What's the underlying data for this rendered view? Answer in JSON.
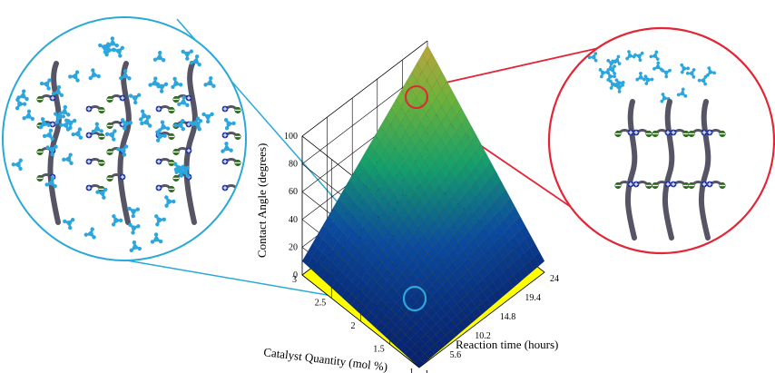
{
  "chart_data": {
    "type": "surface",
    "zlabel": "Contact Angle (degrees)",
    "xlabel": "Catalyst Quantity (mol %)",
    "ylabel": "Reaction time (hours)",
    "z_ticks": [
      "0",
      "20",
      "40",
      "60",
      "80",
      "100"
    ],
    "x_ticks": [
      "1",
      "1.5",
      "2",
      "2.5",
      "3"
    ],
    "y_ticks": [
      "1",
      "5.6",
      "10.2",
      "14.8",
      "19.4",
      "24"
    ],
    "x_range": [
      1,
      3
    ],
    "y_range": [
      1,
      24
    ],
    "z_range": [
      0,
      100
    ],
    "grid": true,
    "surface_corners": [
      {
        "x": 1,
        "y": 1,
        "z": 0
      },
      {
        "x": 3,
        "y": 1,
        "z": 10
      },
      {
        "x": 1,
        "y": 24,
        "z": 8
      },
      {
        "x": 3,
        "y": 24,
        "z": 97
      }
    ],
    "colors": {
      "floor": "#ffff00",
      "contour": "#3fc9d6",
      "highlight_low": "#2aa8d8",
      "highlight_high": "#e32636",
      "surface_low": "#0a2f8a",
      "surface_mid": "#1aa050",
      "surface_high": "#c9a53a"
    }
  },
  "insets": {
    "left": {
      "description_icon": "hydrophilic-polymer-brush-icon",
      "border": "#2aa8d8"
    },
    "right": {
      "description_icon": "hydrophobic-polymer-brush-icon",
      "border": "#e32636"
    }
  }
}
